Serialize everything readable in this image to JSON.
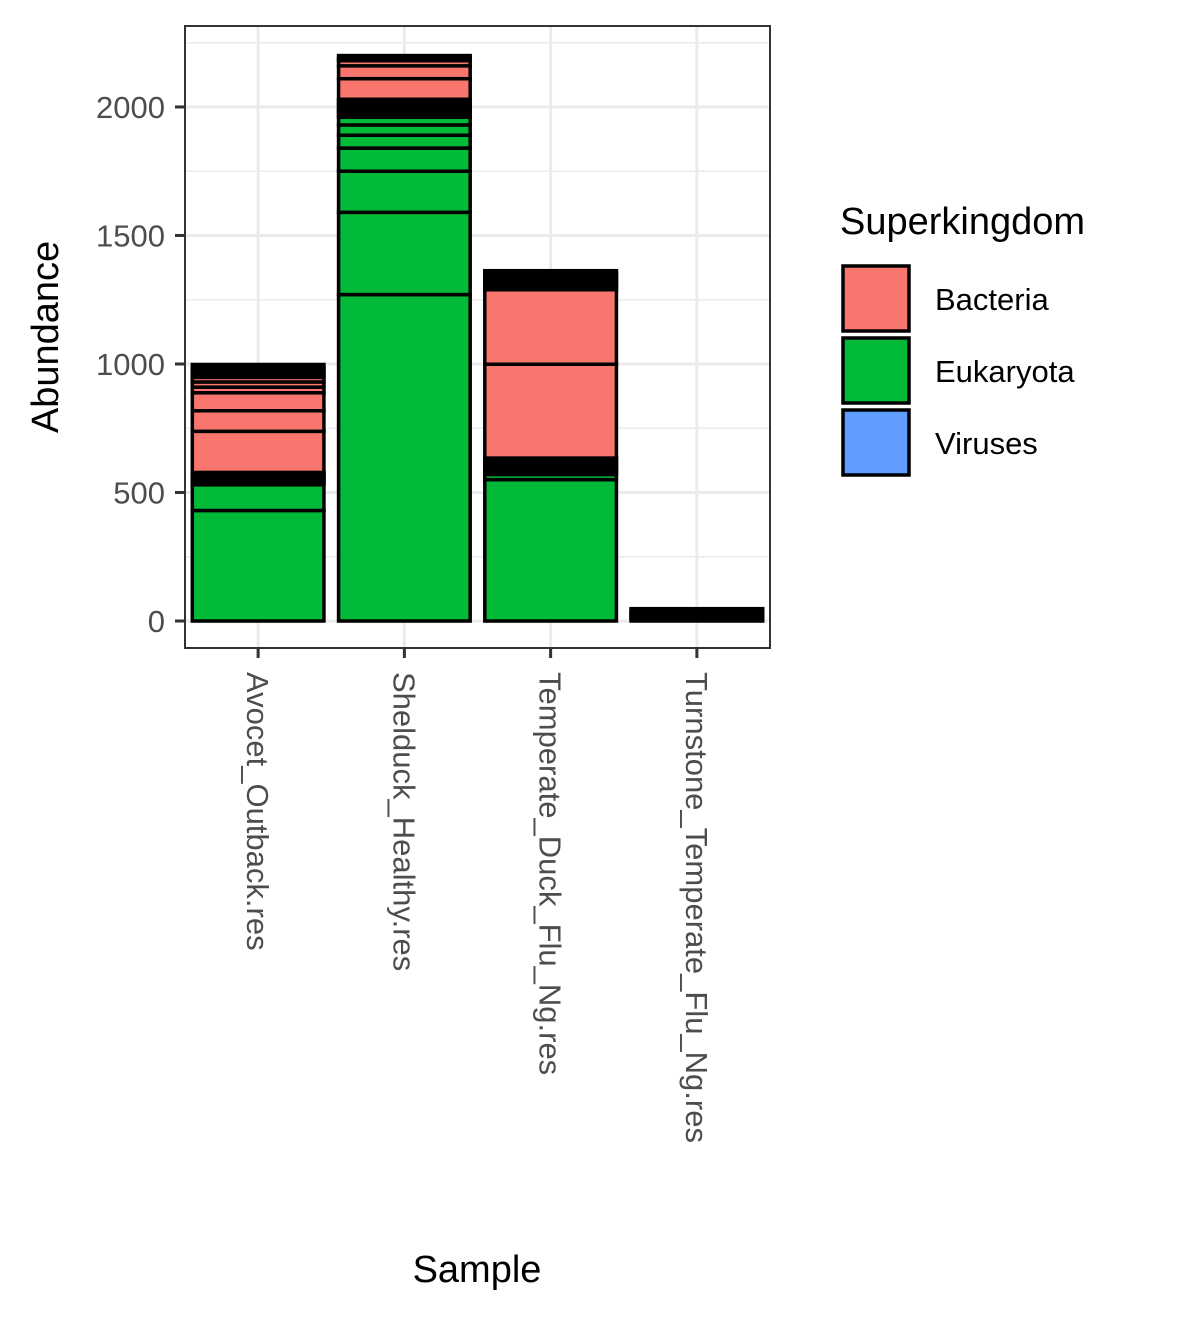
{
  "chart_data": {
    "type": "bar",
    "stacked": true,
    "xlabel": "Sample",
    "ylabel": "Abundance",
    "ylim": [
      -105,
      2315
    ],
    "yticks": [
      0,
      500,
      1000,
      1500,
      2000
    ],
    "grid": true,
    "legend": {
      "title": "Superkingdom",
      "placement": "right",
      "entries": [
        {
          "name": "Bacteria",
          "color": "#F8766D"
        },
        {
          "name": "Eukaryota",
          "color": "#00BA38"
        },
        {
          "name": "Viruses",
          "color": "#619CFF"
        }
      ]
    },
    "categories": [
      "Avocet_Outback.res",
      "Shelduck_Healthy.res",
      "Temperate_Duck_Flu_Ng.res",
      "Turnstone_Temperate_Flu_Ng.res"
    ],
    "stacks": [
      {
        "sample": "Avocet_Outback.res",
        "segments": [
          {
            "kingdom": "Eukaryota",
            "value": 430
          },
          {
            "kingdom": "Eukaryota",
            "value": 100
          },
          {
            "kingdom": "Eukaryota",
            "value": 6
          },
          {
            "kingdom": "Eukaryota",
            "value": 6
          },
          {
            "kingdom": "Eukaryota",
            "value": 6
          },
          {
            "kingdom": "Eukaryota",
            "value": 6
          },
          {
            "kingdom": "Eukaryota",
            "value": 6
          },
          {
            "kingdom": "Eukaryota",
            "value": 6
          },
          {
            "kingdom": "Eukaryota",
            "value": 6
          },
          {
            "kingdom": "Eukaryota",
            "value": 6
          },
          {
            "kingdom": "Bacteria",
            "value": 160
          },
          {
            "kingdom": "Bacteria",
            "value": 80
          },
          {
            "kingdom": "Bacteria",
            "value": 70
          },
          {
            "kingdom": "Bacteria",
            "value": 22
          },
          {
            "kingdom": "Bacteria",
            "value": 20
          },
          {
            "kingdom": "Bacteria",
            "value": 18
          },
          {
            "kingdom": "Bacteria",
            "value": 10
          },
          {
            "kingdom": "Bacteria",
            "value": 10
          },
          {
            "kingdom": "Bacteria",
            "value": 10
          },
          {
            "kingdom": "Bacteria",
            "value": 10
          },
          {
            "kingdom": "Bacteria",
            "value": 10
          }
        ]
      },
      {
        "sample": "Shelduck_Healthy.res",
        "segments": [
          {
            "kingdom": "Eukaryota",
            "value": 1270
          },
          {
            "kingdom": "Eukaryota",
            "value": 320
          },
          {
            "kingdom": "Eukaryota",
            "value": 160
          },
          {
            "kingdom": "Eukaryota",
            "value": 90
          },
          {
            "kingdom": "Eukaryota",
            "value": 50
          },
          {
            "kingdom": "Eukaryota",
            "value": 40
          },
          {
            "kingdom": "Eukaryota",
            "value": 30
          },
          {
            "kingdom": "Eukaryota",
            "value": 10
          },
          {
            "kingdom": "Eukaryota",
            "value": 10
          },
          {
            "kingdom": "Eukaryota",
            "value": 10
          },
          {
            "kingdom": "Eukaryota",
            "value": 10
          },
          {
            "kingdom": "Eukaryota",
            "value": 10
          },
          {
            "kingdom": "Eukaryota",
            "value": 10
          },
          {
            "kingdom": "Eukaryota",
            "value": 10
          },
          {
            "kingdom": "Bacteria",
            "value": 80
          },
          {
            "kingdom": "Bacteria",
            "value": 50
          },
          {
            "kingdom": "Bacteria",
            "value": 20
          },
          {
            "kingdom": "Bacteria",
            "value": 10
          },
          {
            "kingdom": "Bacteria",
            "value": 10
          }
        ]
      },
      {
        "sample": "Temperate_Duck_Flu_Ng.res",
        "segments": [
          {
            "kingdom": "Eukaryota",
            "value": 550
          },
          {
            "kingdom": "Eukaryota",
            "value": 20
          },
          {
            "kingdom": "Eukaryota",
            "value": 8
          },
          {
            "kingdom": "Eukaryota",
            "value": 8
          },
          {
            "kingdom": "Eukaryota",
            "value": 8
          },
          {
            "kingdom": "Eukaryota",
            "value": 8
          },
          {
            "kingdom": "Eukaryota",
            "value": 8
          },
          {
            "kingdom": "Eukaryota",
            "value": 8
          },
          {
            "kingdom": "Eukaryota",
            "value": 8
          },
          {
            "kingdom": "Eukaryota",
            "value": 8
          },
          {
            "kingdom": "Bacteria",
            "value": 365
          },
          {
            "kingdom": "Bacteria",
            "value": 290
          },
          {
            "kingdom": "Bacteria",
            "value": 10
          },
          {
            "kingdom": "Bacteria",
            "value": 8
          },
          {
            "kingdom": "Bacteria",
            "value": 8
          },
          {
            "kingdom": "Bacteria",
            "value": 8
          },
          {
            "kingdom": "Bacteria",
            "value": 8
          },
          {
            "kingdom": "Bacteria",
            "value": 8
          },
          {
            "kingdom": "Bacteria",
            "value": 8
          },
          {
            "kingdom": "Bacteria",
            "value": 8
          },
          {
            "kingdom": "Bacteria",
            "value": 8
          }
        ]
      },
      {
        "sample": "Turnstone_Temperate_Flu_Ng.res",
        "segments": [
          {
            "kingdom": "Eukaryota",
            "value": 8
          },
          {
            "kingdom": "Eukaryota",
            "value": 8
          },
          {
            "kingdom": "Eukaryota",
            "value": 8
          },
          {
            "kingdom": "Bacteria",
            "value": 8
          },
          {
            "kingdom": "Bacteria",
            "value": 8
          },
          {
            "kingdom": "Viruses",
            "value": 8
          }
        ]
      }
    ]
  }
}
